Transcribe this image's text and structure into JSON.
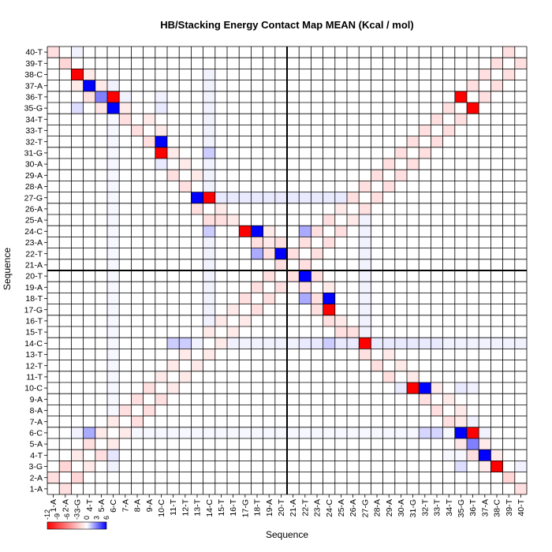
{
  "chart_data": {
    "type": "heatmap",
    "title": "HB/Stacking Energy Contact Map MEAN (Kcal / mol)",
    "xlabel": "Sequence",
    "ylabel": "Sequence",
    "labels": [
      "1-A",
      "2-A",
      "3-G",
      "4-T",
      "5-A",
      "6-C",
      "7-A",
      "8-A",
      "9-A",
      "10-C",
      "11-T",
      "12-T",
      "13-T",
      "14-C",
      "15-T",
      "16-T",
      "17-G",
      "18-T",
      "19-A",
      "20-T",
      "21-A",
      "22-T",
      "23-A",
      "24-C",
      "25-A",
      "26-A",
      "27-G",
      "28-A",
      "29-A",
      "30-A",
      "31-G",
      "32-T",
      "33-T",
      "34-T",
      "35-G",
      "36-T",
      "37-A",
      "38-C",
      "39-T",
      "40-T"
    ],
    "strand_boundary_after_index": 20,
    "colorbar": {
      "min": -12,
      "max": 6,
      "tick_labels": [
        "-12",
        "-9",
        "-6",
        "-3",
        "0",
        "3",
        "6"
      ],
      "negative_color": "#ff0000",
      "zero_color": "#ffffff",
      "positive_color": "#0000ff"
    },
    "matrix": [
      [
        0,
        -1.5,
        0,
        0,
        0,
        0,
        0,
        0,
        0,
        0,
        0,
        0,
        0,
        0,
        0,
        0,
        0,
        0,
        0,
        0,
        0,
        0,
        0,
        0,
        0,
        0,
        0,
        0,
        0,
        0,
        0,
        0,
        0,
        0,
        0,
        0,
        0,
        0,
        0,
        -1.5
      ],
      [
        -1.5,
        0,
        -2,
        0,
        0,
        0,
        0,
        0,
        0,
        0,
        0,
        0,
        0,
        0,
        0,
        0,
        0,
        0,
        0,
        0,
        0,
        0,
        0,
        0,
        0,
        0,
        0,
        0,
        0,
        0,
        0,
        0,
        0,
        0,
        0,
        0,
        0,
        0,
        -2,
        0
      ],
      [
        0,
        -2,
        0,
        -1,
        0,
        0.3,
        0,
        0,
        0,
        0,
        0,
        0,
        0,
        0,
        0,
        0,
        0,
        0,
        0,
        0,
        0,
        0,
        0,
        0,
        0,
        0,
        0,
        0,
        0,
        0,
        0,
        0,
        0,
        0,
        0.8,
        0,
        -1,
        -12,
        0,
        0.3
      ],
      [
        0,
        0,
        -1,
        0,
        -1.5,
        0.6,
        0,
        0,
        0,
        0,
        0,
        0,
        0,
        0,
        0,
        0,
        0,
        0,
        0,
        0,
        0,
        0,
        0,
        0,
        0,
        0,
        0,
        0,
        0,
        0,
        0,
        0,
        0,
        0.2,
        0.2,
        -1.5,
        6,
        -1,
        0,
        0
      ],
      [
        0,
        0,
        0,
        -1.5,
        0,
        -1,
        0,
        0,
        0,
        0,
        0,
        0,
        0,
        0,
        0,
        0,
        0,
        0,
        0,
        0,
        0,
        0,
        0,
        0,
        0,
        0,
        0,
        0,
        0,
        0,
        0,
        0,
        0,
        0,
        -1.2,
        3,
        -1,
        0,
        0,
        0
      ],
      [
        0,
        0,
        0.3,
        2,
        -1,
        0,
        -1,
        0.2,
        0.2,
        0.2,
        0.2,
        0.2,
        0.2,
        0.2,
        0.2,
        0.2,
        0.2,
        0.2,
        0.2,
        0.2,
        0.2,
        0.2,
        0.2,
        0.2,
        0.2,
        0.2,
        0.2,
        0.2,
        0.2,
        0.2,
        0.2,
        1,
        1,
        0.2,
        6,
        -12,
        0.3,
        0,
        0,
        0
      ],
      [
        0,
        0,
        0,
        0,
        0,
        -1,
        0,
        -1.5,
        0,
        0,
        0,
        0,
        0,
        0,
        0,
        0,
        0,
        0,
        0,
        0,
        0,
        0,
        0,
        0,
        0,
        0,
        0,
        0,
        0,
        0,
        0,
        0,
        0,
        -1.5,
        -1,
        0.3,
        0,
        0,
        0,
        0
      ],
      [
        0,
        0,
        0,
        0,
        0,
        0.2,
        -1.5,
        0,
        -1.5,
        0,
        0,
        0,
        0,
        0,
        0,
        0,
        0,
        0,
        0,
        0,
        0,
        0,
        0,
        0,
        0,
        0,
        0,
        0,
        0,
        0,
        0,
        0,
        -1.5,
        0,
        -1,
        0,
        0,
        0,
        0,
        0
      ],
      [
        0,
        0,
        0,
        0,
        0,
        0.2,
        0,
        -1.5,
        0,
        -1.5,
        0,
        0,
        0,
        0,
        0,
        0,
        0,
        0,
        0,
        0,
        0,
        0,
        0,
        0,
        0,
        0,
        0,
        0,
        0,
        0,
        0,
        -1.5,
        0,
        -1,
        0,
        0,
        0,
        0,
        0,
        0
      ],
      [
        0,
        0,
        0,
        0,
        0,
        0.2,
        0,
        0,
        -1.5,
        0,
        -1,
        0,
        0,
        0,
        0,
        0,
        0,
        0,
        0,
        0,
        0,
        0,
        0,
        0,
        0,
        0,
        0,
        0,
        0,
        0.5,
        -12,
        6,
        -1,
        0,
        0.5,
        0.3,
        0,
        0,
        0,
        0
      ],
      [
        0,
        0,
        0,
        0,
        0,
        0.2,
        0,
        0,
        0,
        -1,
        0,
        -1,
        0,
        0,
        0,
        0,
        0,
        0,
        0,
        0,
        0,
        0,
        0,
        0,
        0,
        0,
        0,
        0,
        -1.5,
        0,
        -1,
        0,
        0,
        0,
        0,
        0,
        0,
        0,
        0,
        0
      ],
      [
        0,
        0,
        0,
        0,
        0,
        0.2,
        0,
        0,
        0,
        0,
        -1,
        0,
        -1,
        0,
        0,
        0,
        0,
        0,
        0,
        0,
        0,
        0,
        0,
        0,
        0,
        0,
        0,
        -1.5,
        0,
        -1,
        0,
        0,
        0,
        0,
        0,
        0,
        0,
        0,
        0,
        0
      ],
      [
        0,
        0,
        0,
        0,
        0,
        0.2,
        0,
        0,
        0,
        0,
        0,
        -1,
        0,
        -1,
        0,
        0,
        0,
        0,
        0,
        0,
        0,
        0,
        0,
        0,
        0,
        0,
        -1.5,
        0,
        -1,
        0,
        0,
        0,
        0,
        0,
        0,
        0,
        0,
        0,
        0,
        0
      ],
      [
        0,
        0,
        0,
        0,
        0,
        0.2,
        0,
        0,
        0,
        0,
        1.2,
        1.2,
        0.3,
        0,
        -1,
        0.3,
        0.3,
        0.3,
        0.3,
        0.3,
        0.3,
        0.5,
        0.5,
        1.2,
        0.5,
        0.5,
        -12,
        0.5,
        0.5,
        0.5,
        0.5,
        0.5,
        0.5,
        0.3,
        0.3,
        0.3,
        0.3,
        0.3,
        0.3,
        0.3
      ],
      [
        0,
        0,
        0,
        0,
        0,
        0.2,
        0,
        0,
        0,
        0,
        0,
        0,
        0,
        -1,
        0,
        -1,
        0,
        0,
        0,
        0,
        0,
        0,
        0,
        0,
        -1.5,
        -1.5,
        0.3,
        0,
        0,
        0,
        0,
        0,
        0,
        0,
        0,
        0,
        0,
        0,
        0,
        0
      ],
      [
        0,
        0,
        0,
        0,
        0,
        0.2,
        0,
        0,
        0,
        0,
        0,
        0,
        0,
        0.3,
        -1,
        0,
        -1,
        0,
        0,
        0,
        0,
        0,
        0,
        -1.5,
        -1,
        0,
        0.3,
        0,
        0,
        0,
        0,
        0,
        0,
        0,
        0,
        0,
        0,
        0,
        0,
        0
      ],
      [
        0,
        0,
        0,
        0,
        0,
        0.2,
        0,
        0,
        0,
        0,
        0,
        0,
        0,
        0.3,
        0,
        -1,
        0,
        -1.5,
        0,
        0,
        0,
        0,
        -1.5,
        -12,
        0,
        0,
        0.3,
        0,
        0,
        0,
        0,
        0,
        0,
        0,
        0,
        0,
        0,
        0,
        0,
        0
      ],
      [
        0,
        0,
        0,
        0,
        0,
        0.2,
        0,
        0,
        0,
        0,
        0,
        0,
        0,
        0.3,
        0,
        0,
        -1.5,
        0,
        -1.5,
        0,
        0,
        2,
        -1.5,
        6,
        0,
        0,
        0.3,
        0,
        0,
        0,
        0,
        0,
        0,
        0,
        0,
        0,
        0,
        0,
        0,
        0
      ],
      [
        0,
        0,
        0,
        0,
        0,
        0.2,
        0,
        0,
        0,
        0,
        0,
        0,
        0,
        0.3,
        0,
        0,
        0,
        -1.5,
        0,
        -1.5,
        0,
        -1.5,
        0,
        -1,
        0,
        0,
        0.3,
        0,
        0,
        0,
        0,
        0,
        0,
        0,
        0,
        0,
        0,
        0,
        0,
        0
      ],
      [
        0,
        0,
        0,
        0,
        0,
        0.2,
        0,
        0,
        0,
        0,
        0,
        0,
        0,
        0.3,
        0,
        0,
        0,
        0,
        -1.5,
        0,
        -1.5,
        6,
        -1.5,
        0,
        0,
        0,
        0.3,
        0,
        0,
        0,
        0,
        0,
        0,
        0,
        0,
        0,
        0,
        0,
        0,
        0
      ],
      [
        0,
        0,
        0,
        0,
        0,
        0.2,
        0,
        0,
        0,
        0,
        0,
        0,
        0,
        0.3,
        0,
        0,
        0,
        0,
        0,
        -1.5,
        0,
        -1.5,
        0,
        0,
        0,
        0,
        0.3,
        0,
        0,
        0,
        0,
        0,
        0,
        0,
        0,
        0,
        0,
        0,
        0,
        0
      ],
      [
        0,
        0,
        0,
        0,
        0,
        0.2,
        0,
        0,
        0,
        0,
        0,
        0,
        0,
        0.3,
        0,
        0,
        0,
        2,
        -1.5,
        6,
        -1.5,
        0,
        -1.5,
        0,
        0,
        0,
        0.3,
        0,
        0,
        0,
        0,
        0,
        0,
        0,
        0,
        0,
        0,
        0,
        0,
        0
      ],
      [
        0,
        0,
        0,
        0,
        0,
        0.2,
        0,
        0,
        0,
        0,
        0,
        0,
        0,
        0.3,
        0,
        0,
        0,
        -1.5,
        -1,
        -1.5,
        0,
        -1.5,
        0,
        -1.5,
        0,
        0,
        0.3,
        0,
        0,
        0,
        0,
        0,
        0,
        0,
        0,
        0,
        0,
        0,
        0,
        0
      ],
      [
        0,
        0,
        0,
        0,
        0,
        0.2,
        0,
        0,
        0,
        0,
        0,
        0,
        0,
        1.2,
        0,
        0,
        -12,
        6,
        -1,
        0,
        0,
        2,
        -1.5,
        0,
        -1.5,
        0,
        0.3,
        0,
        0,
        0,
        0,
        0,
        0,
        0,
        0,
        0,
        0,
        0,
        0,
        0
      ],
      [
        0,
        0,
        0,
        0,
        0,
        0.2,
        0,
        0,
        0,
        0,
        0,
        0,
        0,
        -1.5,
        -1.5,
        -1,
        0,
        0,
        0,
        0,
        0,
        0,
        0,
        -1.5,
        0,
        -1,
        0.3,
        0,
        0,
        0,
        0,
        0,
        0,
        0,
        0,
        0,
        0,
        0,
        0,
        0
      ],
      [
        0,
        0,
        0,
        0,
        0,
        0.2,
        0,
        0,
        0,
        0,
        0,
        0,
        -1.5,
        0,
        -1,
        0,
        0,
        0,
        0,
        0,
        0,
        0,
        0,
        0,
        -1,
        0,
        -1.5,
        0,
        0,
        0,
        0,
        0,
        0,
        0,
        0,
        0,
        0,
        0,
        0,
        0
      ],
      [
        0,
        0,
        0,
        0,
        0,
        0.2,
        0,
        0,
        0,
        0,
        0,
        0,
        6,
        -12,
        0.5,
        0.5,
        0.5,
        0.5,
        0.5,
        0.5,
        0.5,
        0.5,
        0.5,
        0.5,
        0.5,
        -1.5,
        0,
        -1.5,
        0,
        0,
        0,
        0,
        0,
        0,
        0,
        0,
        0,
        0,
        0,
        0
      ],
      [
        0,
        0,
        0,
        0,
        0,
        0.2,
        0,
        0,
        0,
        0,
        0,
        -1.5,
        0,
        0.3,
        0,
        0,
        0,
        0,
        0,
        0,
        0,
        0,
        0,
        0,
        0,
        0,
        -1.5,
        0,
        -1.5,
        0,
        0,
        0,
        0,
        0,
        0,
        0,
        0,
        0,
        0,
        0
      ],
      [
        0,
        0,
        0,
        0,
        0,
        0.2,
        0,
        0,
        0,
        0,
        -1.5,
        0,
        -1,
        0.3,
        0,
        0,
        0,
        0,
        0,
        0,
        0,
        0,
        0,
        0,
        0,
        0,
        0,
        -1.5,
        0,
        -1.5,
        0,
        0,
        0,
        0,
        0,
        0,
        0,
        0,
        0,
        0
      ],
      [
        0,
        0,
        0,
        0,
        0,
        0.2,
        0,
        0,
        0,
        0.5,
        0,
        -1,
        0,
        0.3,
        0,
        0,
        0,
        0,
        0,
        0,
        0,
        0,
        0,
        0,
        0,
        0,
        0,
        0,
        -1.5,
        0,
        -1.5,
        0,
        0,
        0,
        0,
        0,
        0,
        0,
        0,
        0
      ],
      [
        0,
        0,
        0,
        0,
        0,
        0.2,
        0,
        0,
        0,
        -12,
        -1,
        0,
        0,
        1.2,
        0,
        0,
        0,
        0,
        0,
        0,
        0,
        0,
        0,
        0,
        0,
        0,
        0,
        0,
        0,
        -1.5,
        0,
        -1.5,
        0,
        0,
        0,
        0,
        0,
        0,
        0,
        0
      ],
      [
        0,
        0,
        0,
        0,
        0,
        0.2,
        0,
        0,
        -1.5,
        6,
        0,
        0,
        0,
        0.3,
        0,
        0,
        0,
        0,
        0,
        0,
        0,
        0,
        0,
        0,
        0,
        0,
        0,
        0,
        0,
        0,
        -1.5,
        0,
        -1.5,
        0,
        0,
        0,
        0,
        0,
        0,
        0
      ],
      [
        0,
        0,
        0,
        0,
        0,
        0.2,
        0,
        -1.5,
        0,
        -1,
        0,
        0,
        0,
        0.3,
        0,
        0,
        0,
        0,
        0,
        0,
        0,
        0,
        0,
        0,
        0,
        0,
        0,
        0,
        0,
        0,
        0,
        -1.5,
        0,
        -1.5,
        0,
        0,
        0,
        0,
        0,
        0
      ],
      [
        0,
        0,
        0,
        0,
        0,
        0.2,
        -1.5,
        0,
        -1,
        0,
        0,
        0,
        0,
        0.3,
        0,
        0,
        0,
        0,
        0,
        0,
        0,
        0,
        0,
        0,
        0,
        0,
        0,
        0,
        0,
        0,
        0,
        0,
        -1.5,
        0,
        -1.5,
        0,
        0,
        0,
        0,
        0
      ],
      [
        0,
        0,
        0.8,
        0,
        -1.2,
        6,
        -1,
        0,
        0,
        0.5,
        0,
        0,
        0,
        0.3,
        0,
        0,
        0,
        0,
        0,
        0,
        0,
        0,
        0,
        0,
        0,
        0,
        0,
        0,
        0,
        0,
        0,
        0,
        0,
        -1.5,
        0,
        -12,
        0,
        0,
        0,
        0
      ],
      [
        0,
        0,
        0,
        -1.5,
        3,
        -12,
        0.3,
        0,
        0,
        0.3,
        0,
        0,
        0,
        0.3,
        0,
        0,
        0,
        0,
        0,
        0,
        0,
        0,
        0,
        0,
        0,
        0,
        0,
        0,
        0,
        0,
        0,
        0,
        0,
        0,
        -12,
        0,
        -1.5,
        0,
        0,
        0
      ],
      [
        0,
        0,
        -1,
        6,
        -1,
        0.3,
        0,
        0,
        0,
        0,
        0,
        0,
        0,
        0.3,
        0,
        0,
        0,
        0,
        0,
        0,
        0,
        0,
        0,
        0,
        0,
        0,
        0,
        0,
        0,
        0,
        0,
        0,
        0,
        0,
        0,
        -1.5,
        0,
        -1.5,
        0,
        0
      ],
      [
        0,
        0,
        -12,
        -1,
        0,
        0,
        0,
        0,
        0,
        0,
        0,
        0,
        0,
        0.3,
        0,
        0,
        0,
        0,
        0,
        0,
        0,
        0,
        0,
        0,
        0,
        0,
        0,
        0,
        0,
        0,
        0,
        0,
        0,
        0,
        0,
        0,
        -1.5,
        0,
        -1.5,
        0
      ],
      [
        0,
        -2,
        0,
        0,
        0,
        0,
        0,
        0,
        0,
        0,
        0,
        0,
        0,
        0,
        0,
        0,
        0,
        0,
        0,
        0,
        0,
        0,
        0,
        0,
        0,
        0,
        0,
        0,
        0,
        0,
        0,
        0,
        0,
        0,
        0,
        0,
        0,
        -1.5,
        0,
        -1.5
      ],
      [
        -1.5,
        0,
        0.3,
        0,
        0,
        0,
        0,
        0,
        0,
        0,
        0,
        0,
        0,
        0,
        0,
        0,
        0,
        0,
        0,
        0,
        0,
        0,
        0,
        0,
        0,
        0,
        0,
        0,
        0,
        0,
        0,
        0,
        0,
        0,
        0,
        0,
        0,
        0,
        -1.5,
        0
      ]
    ]
  }
}
